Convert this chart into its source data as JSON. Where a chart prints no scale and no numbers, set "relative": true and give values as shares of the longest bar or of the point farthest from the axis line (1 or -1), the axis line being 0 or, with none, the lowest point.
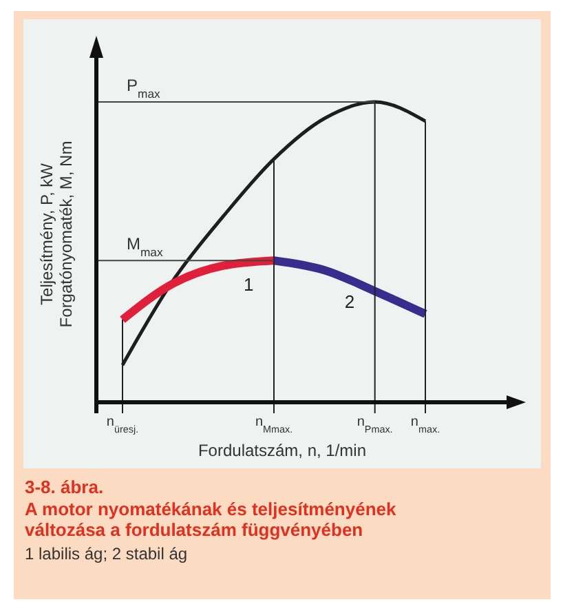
{
  "chart_data": {
    "type": "line",
    "relative": true,
    "title": "3-8. ábra.",
    "subtitle": "A motor nyomatékának és teljesítményének változása a fordulatszám függvényében",
    "xlabel": "Fordulatszám, n, 1/min",
    "ylabel": "Teljesítmény, P, kW\nForgatónyomaték, M, Nm",
    "categories": [
      "n$_{üresj.}$",
      null,
      null,
      "n$_{Mmax.}$",
      null,
      "n$_{Pmax.}$",
      "n$_{max.}$"
    ],
    "series": [
      {
        "color": "#1e1e1e",
        "values": [
          0.124,
          0.405,
          0.62,
          0.81,
          0.945,
          1,
          0.936
        ]
      },
      {
        "name": "1",
        "color": "#e0203a",
        "values": [
          0.275,
          0.395,
          0.455,
          0.472,
          null,
          null,
          null
        ]
      },
      {
        "name": "2",
        "color": "#3a2c8c",
        "values": [
          null,
          null,
          null,
          0.472,
          0.44,
          0.37,
          0.294
        ]
      }
    ],
    "ref_lines": [
      {
        "axis": "y",
        "value": 1,
        "label": "P$_{max}$",
        "color": "#444444"
      },
      {
        "axis": "y",
        "value": 0.472,
        "label": "M$_{max}$",
        "color": "#444444"
      },
      {
        "axis": "x",
        "value": "n$_{üresj.}$",
        "label": null
      },
      {
        "axis": "x",
        "value": "n$_{Mmax.}$",
        "label": null
      },
      {
        "axis": "x",
        "value": "n$_{Pmax.}$",
        "label": null
      },
      {
        "axis": "x",
        "value": "n$_{max.}$",
        "label": null
      }
    ],
    "annotations": [
      "1 labilis ág; 2 stabil ág"
    ],
    "grid": false,
    "marker": "none",
    "line_style": "solid"
  }
}
